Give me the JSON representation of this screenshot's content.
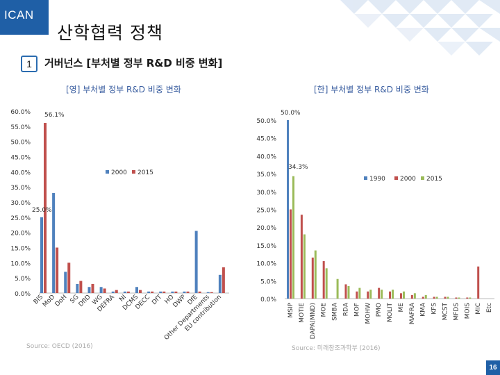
{
  "header": {
    "logo": "ICAN",
    "title": "산학협력 정책",
    "section_number": "1",
    "section_title": "거버넌스 [부처별 정부 R&D 비중 변화]"
  },
  "colors": {
    "brand": "#1f5fa6",
    "series_2000": "#4f81bd",
    "series_2015": "#c0504d",
    "series_1990": "#4f81bd",
    "series_2000_right": "#c0504d",
    "series_2015_right": "#9bbb59"
  },
  "charts": {
    "left_title": "[영] 부처별 정부 R&D 비중 변화",
    "right_title": "[한] 부처별 정부 R&D 비중 변화",
    "left_source": "Source: OECD (2016)",
    "right_source": "Source: 미래창조과학부 (2016)"
  },
  "page_number": "16",
  "chart_data": [
    {
      "type": "bar",
      "categories": [
        "BIS",
        "MoD",
        "DoH",
        "SG",
        "DfID",
        "WG",
        "DEFRA",
        "NI",
        "DCMS",
        "DECC",
        "DfT",
        "HO",
        "DWP",
        "DfE",
        "Other Departments",
        "EU contribution"
      ],
      "series": [
        {
          "name": "2000",
          "values": [
            25.0,
            33.0,
            7.0,
            3.0,
            2.0,
            2.0,
            0.5,
            0.5,
            2.0,
            0.5,
            0.5,
            0.5,
            0.5,
            20.5,
            0.3,
            6.0
          ]
        },
        {
          "name": "2015",
          "values": [
            56.1,
            15.0,
            10.0,
            4.0,
            3.0,
            1.5,
            1.0,
            0.5,
            1.0,
            0.5,
            0.5,
            0.5,
            0.5,
            0.5,
            0.3,
            8.5
          ]
        }
      ],
      "annotations": [
        "56.1%",
        "25.0%"
      ],
      "ylim": [
        0,
        60
      ],
      "yticks": [
        "0.0%",
        "5.0%",
        "10.0%",
        "15.0%",
        "20.0%",
        "25.0%",
        "30.0%",
        "35.0%",
        "40.0%",
        "45.0%",
        "50.0%",
        "55.0%",
        "60.0%"
      ],
      "legend": "center"
    },
    {
      "type": "bar",
      "categories": [
        "MSIP",
        "MOTIE",
        "DAPA(MND)",
        "MOE",
        "SMBA",
        "RDA",
        "MOF",
        "MOHW",
        "PMO",
        "MOLIT",
        "ME",
        "MAFRA",
        "KMA",
        "KFS",
        "MCST",
        "MFDS",
        "MOIS",
        "MIC",
        "Etc"
      ],
      "series": [
        {
          "name": "1990",
          "values": [
            50.0,
            0,
            0,
            0,
            0,
            0,
            0,
            0,
            0,
            0,
            0,
            0,
            0,
            0,
            0,
            0,
            0,
            0,
            0
          ]
        },
        {
          "name": "2000",
          "values": [
            25.0,
            23.5,
            11.5,
            10.5,
            0,
            4.0,
            2.0,
            2.0,
            3.0,
            2.0,
            1.5,
            1.0,
            0.5,
            0.5,
            0.5,
            0.3,
            0.3,
            9.0,
            0
          ]
        },
        {
          "name": "2015",
          "values": [
            34.3,
            18.0,
            13.5,
            8.5,
            5.5,
            3.5,
            3.0,
            2.5,
            2.5,
            2.5,
            2.0,
            1.5,
            1.0,
            0.5,
            0.5,
            0.3,
            0.3,
            0,
            0
          ]
        }
      ],
      "annotations": [
        "50.0%",
        "34.3%"
      ],
      "ylim": [
        0,
        50
      ],
      "yticks": [
        "0.0%",
        "5.0%",
        "10.0%",
        "15.0%",
        "20.0%",
        "25.0%",
        "30.0%",
        "35.0%",
        "40.0%",
        "45.0%",
        "50.0%"
      ],
      "legend": "top-right"
    }
  ]
}
